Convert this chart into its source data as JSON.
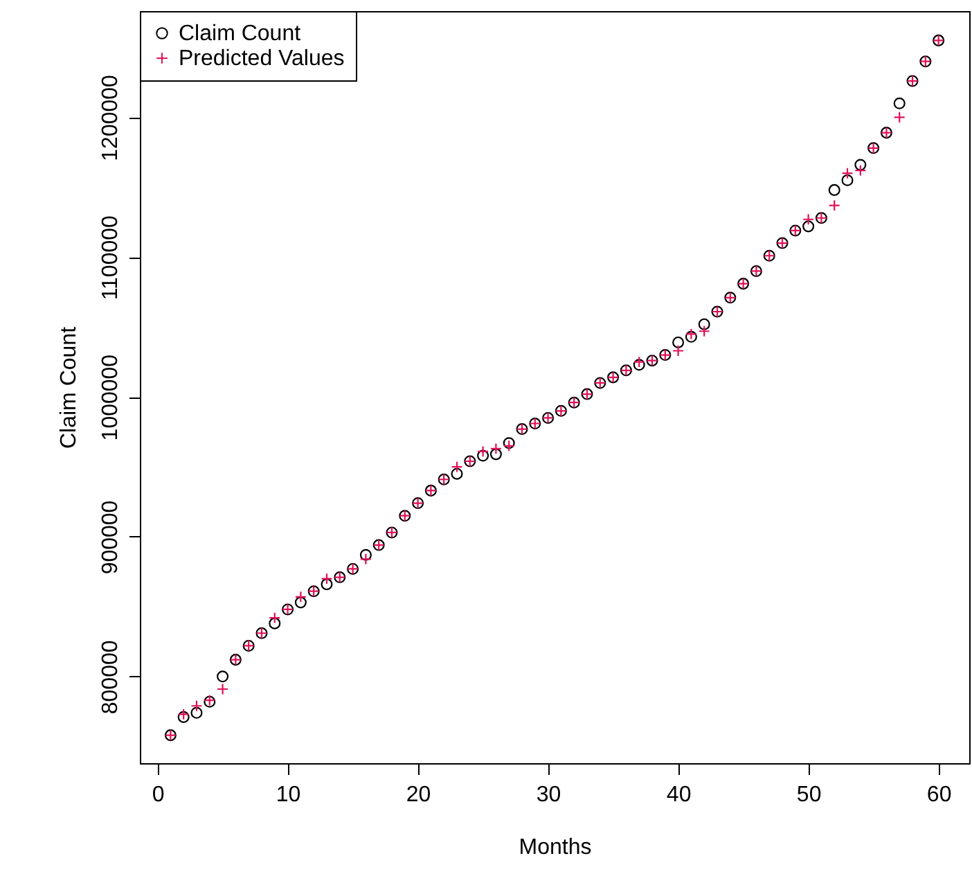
{
  "chart_data": {
    "type": "scatter",
    "xlabel": "Months",
    "ylabel": "Claim Count",
    "x": [
      1,
      2,
      3,
      4,
      5,
      6,
      7,
      8,
      9,
      10,
      11,
      12,
      13,
      14,
      15,
      16,
      17,
      18,
      19,
      20,
      21,
      22,
      23,
      24,
      25,
      26,
      27,
      28,
      29,
      30,
      31,
      32,
      33,
      34,
      35,
      36,
      37,
      38,
      39,
      40,
      41,
      42,
      43,
      44,
      45,
      46,
      47,
      48,
      49,
      50,
      51,
      52,
      53,
      54,
      55,
      56,
      57,
      58,
      59,
      60
    ],
    "series": [
      {
        "name": "Claim Count",
        "color": "#000000",
        "marker": "circle",
        "values": [
          758000,
          771000,
          774000,
          782000,
          800000,
          812000,
          822000,
          831000,
          838000,
          848000,
          853000,
          861000,
          866000,
          871000,
          877000,
          887000,
          894000,
          903000,
          915000,
          924000,
          933000,
          941000,
          945000,
          954000,
          958000,
          959000,
          967000,
          977000,
          981000,
          985000,
          990000,
          996000,
          1002000,
          1010000,
          1014000,
          1019000,
          1023000,
          1026000,
          1030000,
          1039000,
          1043000,
          1052000,
          1061000,
          1071000,
          1081000,
          1090000,
          1101000,
          1110000,
          1119000,
          1122000,
          1128000,
          1148000,
          1155000,
          1166000,
          1178000,
          1189000,
          1210000,
          1226000,
          1240000,
          1255000
        ]
      },
      {
        "name": "Predicted Values",
        "color": "#e0105a",
        "marker": "cross",
        "values": [
          758000,
          773000,
          779000,
          783000,
          791000,
          812000,
          822000,
          831000,
          842000,
          848000,
          857000,
          861000,
          870000,
          871000,
          877000,
          884000,
          894000,
          903000,
          915000,
          924000,
          933000,
          941000,
          950000,
          954000,
          961000,
          963000,
          965000,
          977000,
          981000,
          985000,
          990000,
          996000,
          1002000,
          1010000,
          1014000,
          1019000,
          1025000,
          1026000,
          1030000,
          1033000,
          1045000,
          1047000,
          1061000,
          1071000,
          1081000,
          1090000,
          1101000,
          1110000,
          1119000,
          1127000,
          1128000,
          1137000,
          1160000,
          1162000,
          1178000,
          1189000,
          1200000,
          1226000,
          1240000,
          1255000
        ]
      }
    ],
    "xlim": [
      -1.36,
      62.36
    ],
    "xticks": [
      0,
      10,
      20,
      30,
      40,
      50,
      60
    ],
    "ylim": [
      738000,
      1276000
    ],
    "yticks": [
      800000,
      900000,
      1000000,
      1100000,
      1200000
    ],
    "legend": "top left",
    "grid": false
  }
}
